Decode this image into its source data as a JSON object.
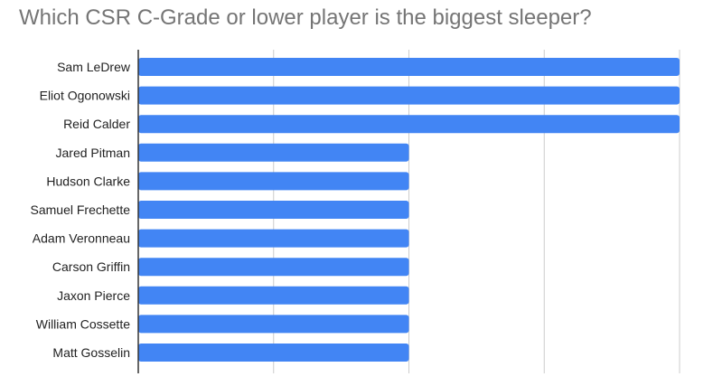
{
  "chart_data": {
    "type": "bar",
    "orientation": "horizontal",
    "title": "Which CSR C-Grade or lower player is the biggest sleeper?",
    "categories": [
      "Sam LeDrew",
      "Eliot Ogonowski",
      "Reid Calder",
      "Jared Pitman",
      "Hudson Clarke",
      "Samuel Frechette",
      "Adam Veronneau",
      "Carson Griffin",
      "Jaxon Pierce",
      "William Cossette",
      "Matt Gosselin"
    ],
    "values": [
      2,
      2,
      2,
      1,
      1,
      1,
      1,
      1,
      1,
      1,
      1
    ],
    "xlim": [
      0,
      2
    ],
    "gridlines": [
      0,
      0.5,
      1,
      1.5,
      2
    ],
    "grid": true,
    "xlabel": "",
    "ylabel": "",
    "bar_color": "#4285f4",
    "grid_color": "#cccccc",
    "axis_color": "#333333"
  }
}
